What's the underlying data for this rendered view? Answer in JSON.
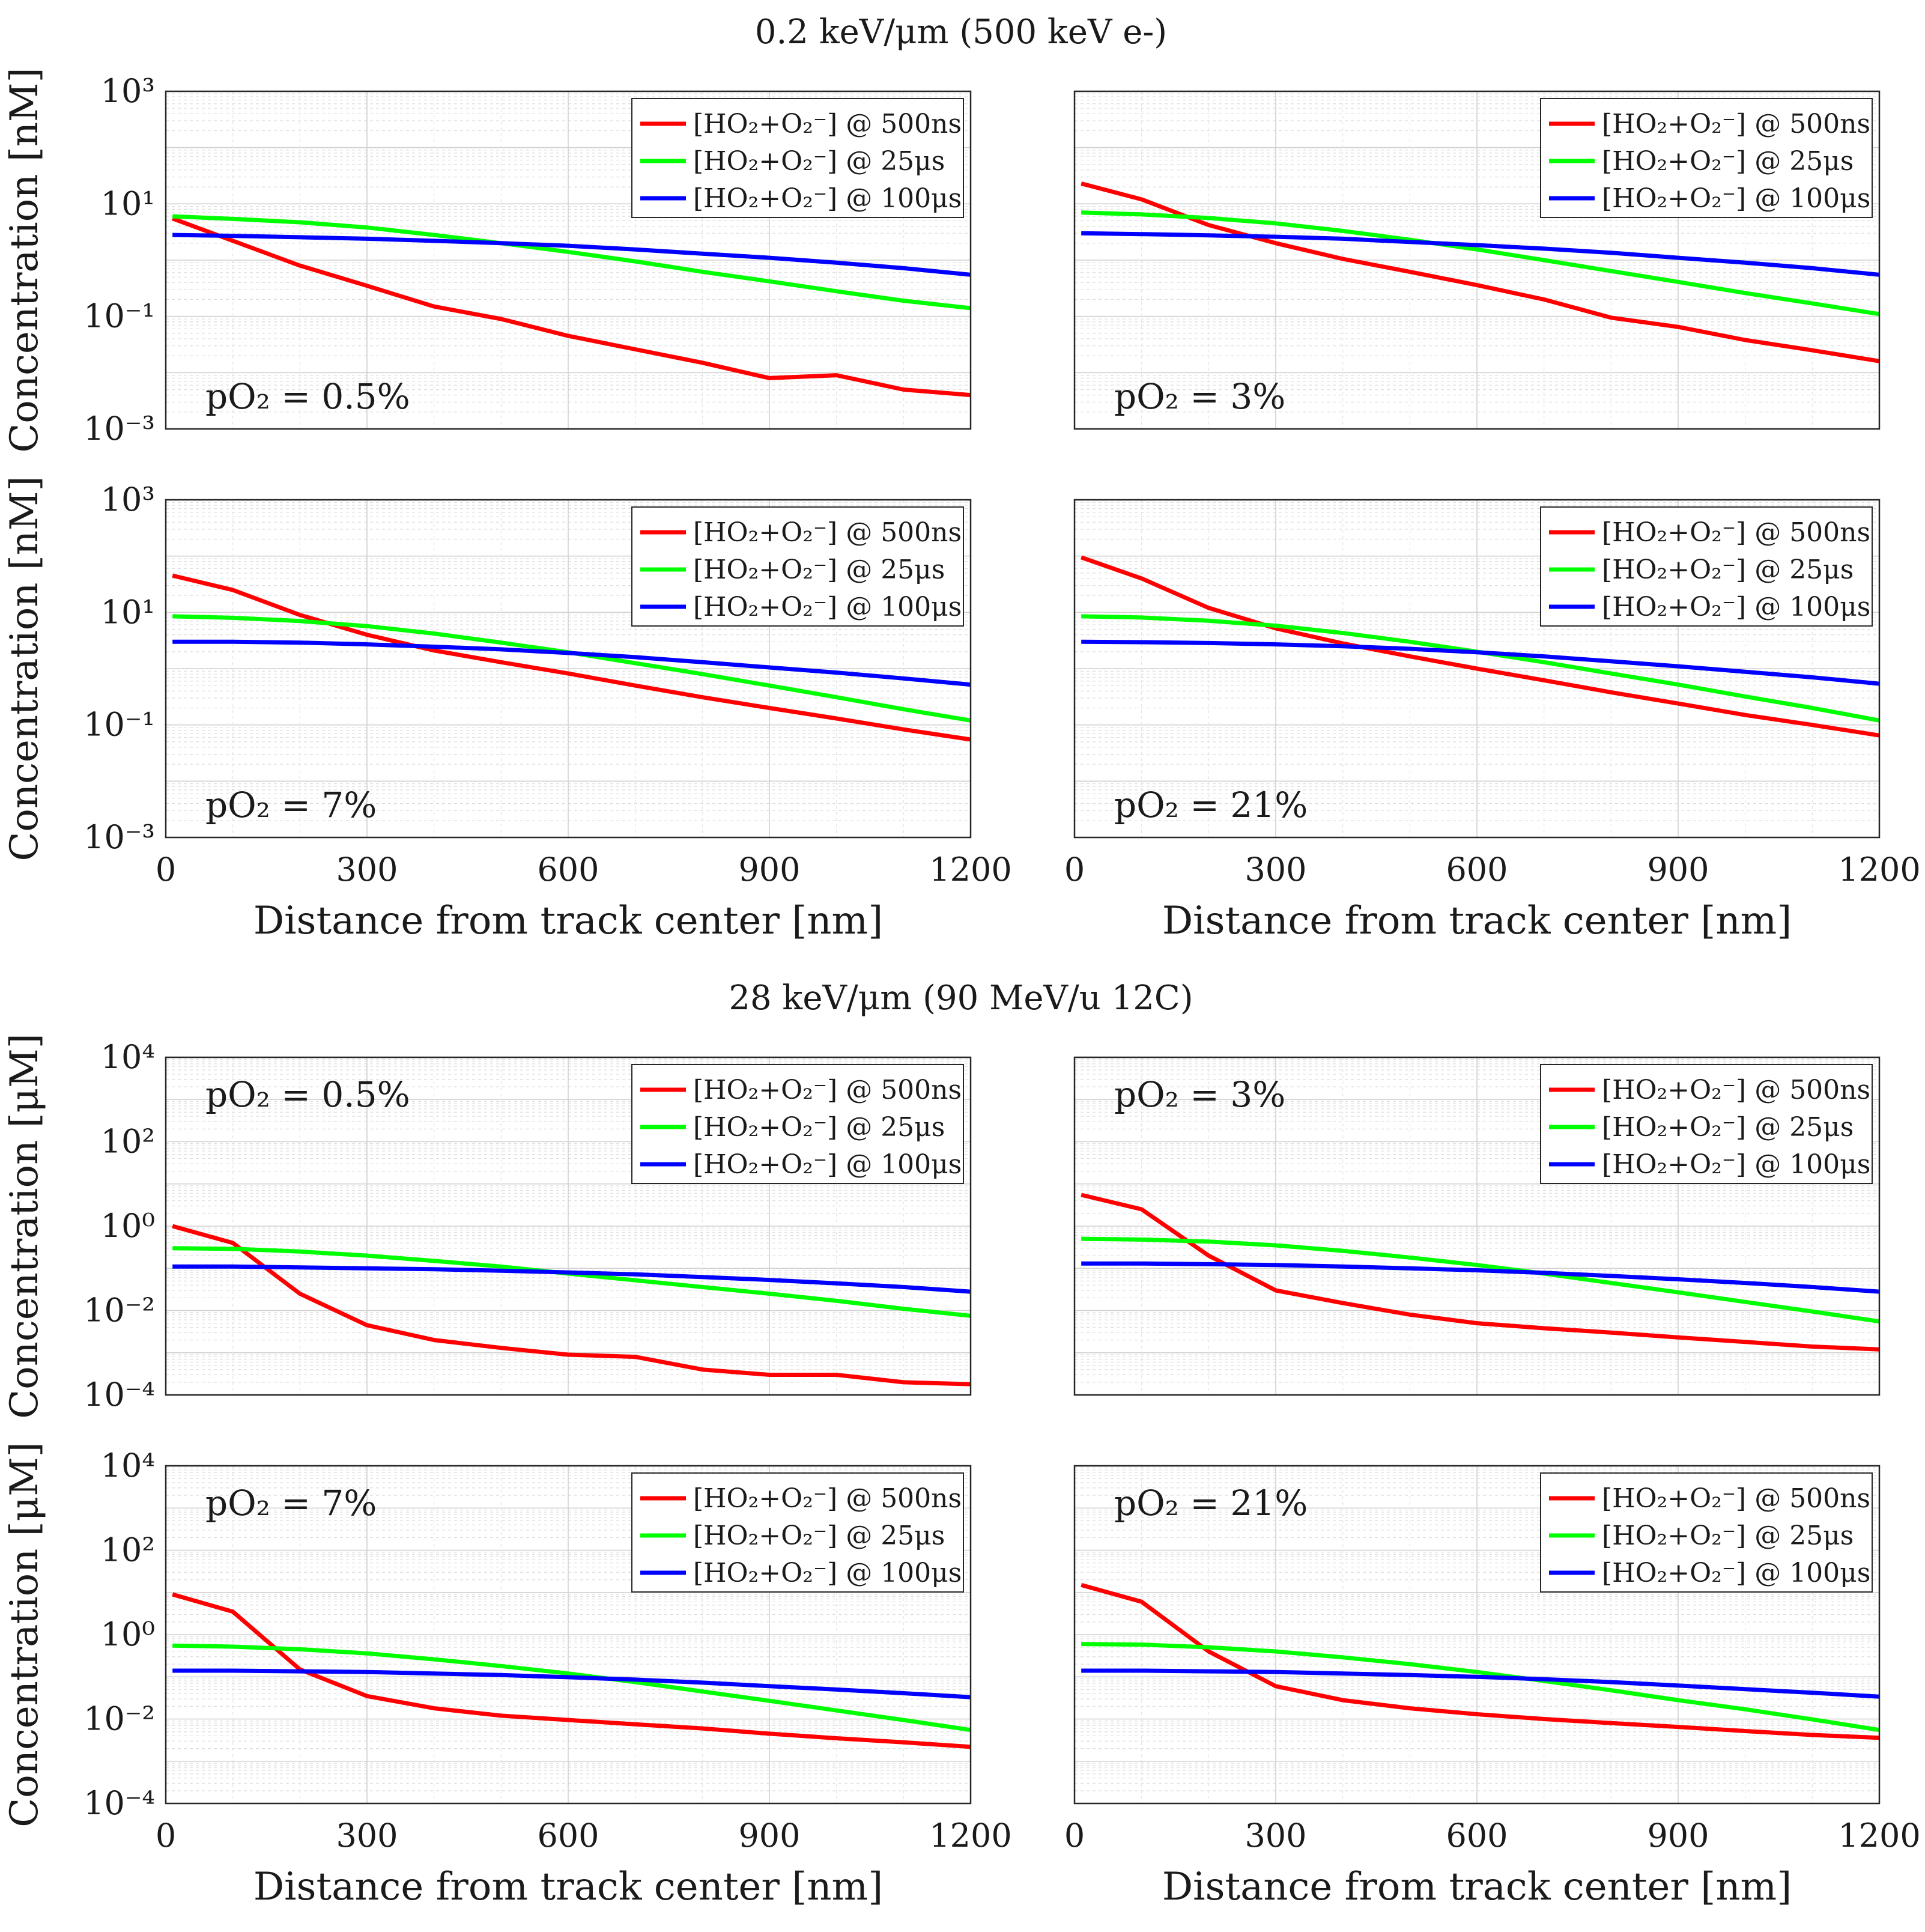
{
  "figure_titles": [
    "0.2 keV/μm (500 keV e-)",
    "28 keV/μm (90 MeV/u 12C)"
  ],
  "legend_labels": [
    "[HO₂+O₂⁻] @ 500ns",
    "[HO₂+O₂⁻] @ 25μs",
    "[HO₂+O₂⁻] @ 100μs"
  ],
  "series_colors": [
    "#ff0000",
    "#00ff00",
    "#0000ff"
  ],
  "xlabel": "Distance from track center [nm]",
  "ylabel_top": "Concentration [nM]",
  "ylabel_bottom": "Concentration [μM]",
  "xticks": [
    0,
    300,
    600,
    900,
    1200
  ],
  "chart_data": [
    {
      "type": "line",
      "group": "0.2 keV/μm (500 keV e-)",
      "annotation": "pO₂ = 0.5%",
      "xlabel": "",
      "ylabel": "Concentration [nM]",
      "xlim": [
        0,
        1200
      ],
      "ylim": [
        0.001,
        1000
      ],
      "yscale": "log",
      "yticks": [
        "10⁻³",
        "10⁻¹",
        "10¹",
        "10³"
      ],
      "x": [
        10,
        100,
        200,
        300,
        400,
        500,
        600,
        700,
        800,
        900,
        1000,
        1100,
        1200
      ],
      "series": [
        {
          "name": "[HO₂+O₂⁻] @ 500ns",
          "values": [
            5.5,
            2.2,
            0.8,
            0.35,
            0.15,
            0.09,
            0.045,
            0.026,
            0.015,
            0.008,
            0.009,
            0.005,
            0.004
          ]
        },
        {
          "name": "[HO₂+O₂⁻] @ 25μs",
          "values": [
            6.0,
            5.4,
            4.7,
            3.8,
            2.8,
            2.0,
            1.4,
            0.95,
            0.62,
            0.42,
            0.28,
            0.19,
            0.14
          ]
        },
        {
          "name": "[HO₂+O₂⁻] @ 100μs",
          "values": [
            2.8,
            2.7,
            2.55,
            2.4,
            2.2,
            2.0,
            1.8,
            1.55,
            1.3,
            1.1,
            0.9,
            0.72,
            0.55
          ]
        }
      ]
    },
    {
      "type": "line",
      "group": "0.2 keV/μm (500 keV e-)",
      "annotation": "pO₂ = 3%",
      "xlabel": "",
      "ylabel": "",
      "xlim": [
        0,
        1200
      ],
      "ylim": [
        0.001,
        1000
      ],
      "yscale": "log",
      "x": [
        10,
        100,
        200,
        300,
        400,
        500,
        600,
        700,
        800,
        900,
        1000,
        1100,
        1200
      ],
      "series": [
        {
          "name": "[HO₂+O₂⁻] @ 500ns",
          "values": [
            23,
            12,
            4.2,
            2.0,
            1.05,
            0.62,
            0.36,
            0.2,
            0.095,
            0.065,
            0.038,
            0.025,
            0.016
          ]
        },
        {
          "name": "[HO₂+O₂⁻] @ 25μs",
          "values": [
            7.0,
            6.5,
            5.6,
            4.5,
            3.3,
            2.3,
            1.55,
            1.0,
            0.64,
            0.41,
            0.26,
            0.17,
            0.11
          ]
        },
        {
          "name": "[HO₂+O₂⁻] @ 100μs",
          "values": [
            3.0,
            2.9,
            2.75,
            2.6,
            2.4,
            2.1,
            1.85,
            1.6,
            1.35,
            1.1,
            0.9,
            0.72,
            0.55
          ]
        }
      ]
    },
    {
      "type": "line",
      "group": "0.2 keV/μm (500 keV e-)",
      "annotation": "pO₂ = 7%",
      "xlabel": "Distance from track center [nm]",
      "ylabel": "Concentration [nM]",
      "xlim": [
        0,
        1200
      ],
      "ylim": [
        0.001,
        1000
      ],
      "yscale": "log",
      "yticks": [
        "10⁻³",
        "10⁻¹",
        "10¹",
        "10³"
      ],
      "x": [
        10,
        100,
        200,
        300,
        400,
        500,
        600,
        700,
        800,
        900,
        1000,
        1100,
        1200
      ],
      "series": [
        {
          "name": "[HO₂+O₂⁻] @ 500ns",
          "values": [
            45,
            25,
            9,
            4.0,
            2.1,
            1.3,
            0.82,
            0.5,
            0.31,
            0.2,
            0.13,
            0.083,
            0.055
          ]
        },
        {
          "name": "[HO₂+O₂⁻] @ 25μs",
          "values": [
            8.5,
            8.0,
            7.0,
            5.7,
            4.2,
            2.9,
            1.95,
            1.25,
            0.8,
            0.5,
            0.31,
            0.19,
            0.12
          ]
        },
        {
          "name": "[HO₂+O₂⁻] @ 100μs",
          "values": [
            3.0,
            3.0,
            2.9,
            2.7,
            2.45,
            2.2,
            1.9,
            1.6,
            1.3,
            1.05,
            0.85,
            0.67,
            0.52
          ]
        }
      ]
    },
    {
      "type": "line",
      "group": "0.2 keV/μm (500 keV e-)",
      "annotation": "pO₂ = 21%",
      "xlabel": "Distance from track center [nm]",
      "ylabel": "",
      "xlim": [
        0,
        1200
      ],
      "ylim": [
        0.001,
        1000
      ],
      "yscale": "log",
      "x": [
        10,
        100,
        200,
        300,
        400,
        500,
        600,
        700,
        800,
        900,
        1000,
        1100,
        1200
      ],
      "series": [
        {
          "name": "[HO₂+O₂⁻] @ 500ns",
          "values": [
            95,
            40,
            12,
            5.2,
            2.8,
            1.65,
            1.0,
            0.62,
            0.38,
            0.24,
            0.15,
            0.1,
            0.065
          ]
        },
        {
          "name": "[HO₂+O₂⁻] @ 25μs",
          "values": [
            8.5,
            8.1,
            7.1,
            5.8,
            4.3,
            3.0,
            2.0,
            1.3,
            0.82,
            0.52,
            0.32,
            0.2,
            0.12
          ]
        },
        {
          "name": "[HO₂+O₂⁻] @ 100μs",
          "values": [
            3.0,
            2.95,
            2.85,
            2.7,
            2.5,
            2.25,
            1.95,
            1.65,
            1.35,
            1.1,
            0.88,
            0.7,
            0.54
          ]
        }
      ]
    },
    {
      "type": "line",
      "group": "28 keV/μm (90 MeV/u 12C)",
      "annotation": "pO₂ = 0.5%",
      "xlabel": "",
      "ylabel": "Concentration [μM]",
      "xlim": [
        0,
        1200
      ],
      "ylim": [
        0.0001,
        10000
      ],
      "yscale": "log",
      "yticks": [
        "10⁻⁴",
        "10⁻²",
        "10⁰",
        "10²",
        "10⁴"
      ],
      "x": [
        10,
        100,
        200,
        300,
        400,
        500,
        600,
        700,
        800,
        900,
        1000,
        1100,
        1200
      ],
      "series": [
        {
          "name": "[HO₂+O₂⁻] @ 500ns",
          "values": [
            1.0,
            0.4,
            0.025,
            0.0045,
            0.002,
            0.0013,
            0.0009,
            0.0008,
            0.0004,
            0.0003,
            0.0003,
            0.0002,
            0.00018
          ]
        },
        {
          "name": "[HO₂+O₂⁻] @ 25μs",
          "values": [
            0.3,
            0.29,
            0.25,
            0.2,
            0.15,
            0.11,
            0.075,
            0.052,
            0.036,
            0.025,
            0.017,
            0.011,
            0.0075
          ]
        },
        {
          "name": "[HO₂+O₂⁻] @ 100μs",
          "values": [
            0.11,
            0.11,
            0.105,
            0.1,
            0.095,
            0.088,
            0.08,
            0.072,
            0.062,
            0.053,
            0.044,
            0.036,
            0.028
          ]
        }
      ]
    },
    {
      "type": "line",
      "group": "28 keV/μm (90 MeV/u 12C)",
      "annotation": "pO₂ = 3%",
      "xlabel": "",
      "ylabel": "",
      "xlim": [
        0,
        1200
      ],
      "ylim": [
        0.0001,
        10000
      ],
      "yscale": "log",
      "x": [
        10,
        100,
        200,
        300,
        400,
        500,
        600,
        700,
        800,
        900,
        1000,
        1100,
        1200
      ],
      "series": [
        {
          "name": "[HO₂+O₂⁻] @ 500ns",
          "values": [
            5.5,
            2.5,
            0.2,
            0.03,
            0.015,
            0.008,
            0.005,
            0.0038,
            0.003,
            0.0023,
            0.0018,
            0.0014,
            0.0012
          ]
        },
        {
          "name": "[HO₂+O₂⁻] @ 25μs",
          "values": [
            0.5,
            0.48,
            0.43,
            0.35,
            0.26,
            0.18,
            0.12,
            0.075,
            0.045,
            0.027,
            0.016,
            0.0095,
            0.0055
          ]
        },
        {
          "name": "[HO₂+O₂⁻] @ 100μs",
          "values": [
            0.13,
            0.13,
            0.125,
            0.12,
            0.11,
            0.1,
            0.09,
            0.078,
            0.066,
            0.055,
            0.045,
            0.036,
            0.028
          ]
        }
      ]
    },
    {
      "type": "line",
      "group": "28 keV/μm (90 MeV/u 12C)",
      "annotation": "pO₂ = 7%",
      "xlabel": "Distance from track center [nm]",
      "ylabel": "Concentration [μM]",
      "xlim": [
        0,
        1200
      ],
      "ylim": [
        0.0001,
        10000
      ],
      "yscale": "log",
      "yticks": [
        "10⁻⁴",
        "10⁻²",
        "10⁰",
        "10²",
        "10⁴"
      ],
      "x": [
        10,
        100,
        200,
        300,
        400,
        500,
        600,
        700,
        800,
        900,
        1000,
        1100,
        1200
      ],
      "series": [
        {
          "name": "[HO₂+O₂⁻] @ 500ns",
          "values": [
            9.0,
            3.5,
            0.15,
            0.035,
            0.018,
            0.012,
            0.0095,
            0.0075,
            0.006,
            0.0045,
            0.0035,
            0.0028,
            0.0022
          ]
        },
        {
          "name": "[HO₂+O₂⁻] @ 25μs",
          "values": [
            0.55,
            0.52,
            0.45,
            0.36,
            0.26,
            0.18,
            0.12,
            0.075,
            0.045,
            0.027,
            0.016,
            0.0095,
            0.0055
          ]
        },
        {
          "name": "[HO₂+O₂⁻] @ 100μs",
          "values": [
            0.14,
            0.14,
            0.135,
            0.13,
            0.12,
            0.11,
            0.098,
            0.086,
            0.073,
            0.06,
            0.05,
            0.041,
            0.033
          ]
        }
      ]
    },
    {
      "type": "line",
      "group": "28 keV/μm (90 MeV/u 12C)",
      "annotation": "pO₂ = 21%",
      "xlabel": "Distance from track center [nm]",
      "ylabel": "",
      "xlim": [
        0,
        1200
      ],
      "ylim": [
        0.0001,
        10000
      ],
      "yscale": "log",
      "x": [
        10,
        100,
        200,
        300,
        400,
        500,
        600,
        700,
        800,
        900,
        1000,
        1100,
        1200
      ],
      "series": [
        {
          "name": "[HO₂+O₂⁻] @ 500ns",
          "values": [
            15,
            6.0,
            0.4,
            0.06,
            0.028,
            0.018,
            0.013,
            0.01,
            0.008,
            0.0065,
            0.0052,
            0.0042,
            0.0036
          ]
        },
        {
          "name": "[HO₂+O₂⁻] @ 25μs",
          "values": [
            0.6,
            0.58,
            0.5,
            0.4,
            0.29,
            0.2,
            0.13,
            0.08,
            0.048,
            0.028,
            0.017,
            0.0098,
            0.0055
          ]
        },
        {
          "name": "[HO₂+O₂⁻] @ 100μs",
          "values": [
            0.14,
            0.14,
            0.135,
            0.13,
            0.12,
            0.11,
            0.1,
            0.088,
            0.075,
            0.062,
            0.051,
            0.042,
            0.034
          ]
        }
      ]
    }
  ]
}
